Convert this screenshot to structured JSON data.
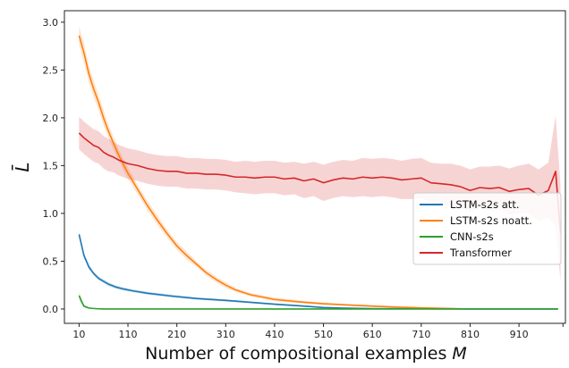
{
  "chart_data": {
    "type": "line",
    "title": "",
    "xlabel": "Number of compositional examples M",
    "xlabel_text": "Number of compositional examples ",
    "xlabel_var": "M",
    "ylabel": "L̄",
    "xlim": [
      -20,
      1005
    ],
    "ylim": [
      -0.15,
      3.12
    ],
    "xticks": [
      10,
      110,
      210,
      310,
      410,
      510,
      610,
      710,
      810,
      910
    ],
    "yticks": [
      0.0,
      0.5,
      1.0,
      1.5,
      2.0,
      2.5,
      3.0
    ],
    "ytick_labels": [
      "0.0",
      "0.5",
      "1.0",
      "1.5",
      "2.0",
      "2.5",
      "3.0"
    ],
    "grid": false,
    "legend_position": "center-right",
    "series": [
      {
        "name": "LSTM-s2s att.",
        "color": "#1f77b4",
        "points": [
          [
            10,
            0.78
          ],
          [
            20,
            0.56
          ],
          [
            30,
            0.44
          ],
          [
            40,
            0.37
          ],
          [
            50,
            0.32
          ],
          [
            60,
            0.29
          ],
          [
            70,
            0.26
          ],
          [
            85,
            0.23
          ],
          [
            100,
            0.21
          ],
          [
            120,
            0.19
          ],
          [
            150,
            0.165
          ],
          [
            200,
            0.135
          ],
          [
            250,
            0.11
          ],
          [
            310,
            0.09
          ],
          [
            360,
            0.07
          ],
          [
            410,
            0.05
          ],
          [
            470,
            0.03
          ],
          [
            510,
            0.015
          ],
          [
            560,
            0.008
          ],
          [
            610,
            0.004
          ],
          [
            710,
            0.002
          ],
          [
            810,
            0.0
          ],
          [
            990,
            0.0
          ]
        ],
        "band": [
          0.03,
          0.03,
          0.025,
          0.02,
          0.02,
          0.02,
          0.02,
          0.018,
          0.018,
          0.015,
          0.015,
          0.015,
          0.012,
          0.012,
          0.01,
          0.01,
          0.008,
          0.006,
          0.004,
          0.003,
          0.002,
          0.001,
          0.001
        ]
      },
      {
        "name": "LSTM-s2s noatt.",
        "color": "#ff7f0e",
        "points": [
          [
            10,
            2.86
          ],
          [
            20,
            2.68
          ],
          [
            30,
            2.46
          ],
          [
            40,
            2.3
          ],
          [
            50,
            2.16
          ],
          [
            60,
            2.0
          ],
          [
            70,
            1.86
          ],
          [
            80,
            1.74
          ],
          [
            90,
            1.62
          ],
          [
            100,
            1.52
          ],
          [
            110,
            1.42
          ],
          [
            130,
            1.25
          ],
          [
            150,
            1.08
          ],
          [
            170,
            0.93
          ],
          [
            190,
            0.79
          ],
          [
            210,
            0.66
          ],
          [
            230,
            0.56
          ],
          [
            250,
            0.47
          ],
          [
            270,
            0.38
          ],
          [
            290,
            0.31
          ],
          [
            310,
            0.25
          ],
          [
            330,
            0.2
          ],
          [
            360,
            0.15
          ],
          [
            410,
            0.1
          ],
          [
            460,
            0.075
          ],
          [
            510,
            0.055
          ],
          [
            560,
            0.042
          ],
          [
            610,
            0.03
          ],
          [
            660,
            0.02
          ],
          [
            710,
            0.012
          ],
          [
            760,
            0.006
          ],
          [
            790,
            0.002
          ]
        ],
        "band": [
          0.1,
          0.1,
          0.09,
          0.09,
          0.08,
          0.08,
          0.07,
          0.07,
          0.06,
          0.06,
          0.06,
          0.05,
          0.05,
          0.05,
          0.04,
          0.04,
          0.04,
          0.03,
          0.03,
          0.03,
          0.03,
          0.02,
          0.02,
          0.02,
          0.015,
          0.012,
          0.01,
          0.01,
          0.008,
          0.006,
          0.004,
          0.002
        ]
      },
      {
        "name": "CNN-s2s",
        "color": "#2ca02c",
        "points": [
          [
            10,
            0.14
          ],
          [
            15,
            0.08
          ],
          [
            20,
            0.03
          ],
          [
            30,
            0.01
          ],
          [
            45,
            0.003
          ],
          [
            60,
            0.0
          ],
          [
            990,
            0.0
          ]
        ],
        "band": [
          0.04,
          0.03,
          0.015,
          0.008,
          0.003,
          0.0,
          0.0
        ]
      },
      {
        "name": "Transformer",
        "color": "#d62728",
        "points": [
          [
            10,
            1.84
          ],
          [
            20,
            1.79
          ],
          [
            30,
            1.75
          ],
          [
            40,
            1.71
          ],
          [
            50,
            1.69
          ],
          [
            60,
            1.64
          ],
          [
            70,
            1.61
          ],
          [
            80,
            1.59
          ],
          [
            90,
            1.56
          ],
          [
            100,
            1.54
          ],
          [
            110,
            1.52
          ],
          [
            130,
            1.5
          ],
          [
            150,
            1.47
          ],
          [
            170,
            1.45
          ],
          [
            190,
            1.44
          ],
          [
            210,
            1.44
          ],
          [
            230,
            1.42
          ],
          [
            250,
            1.42
          ],
          [
            270,
            1.41
          ],
          [
            290,
            1.41
          ],
          [
            310,
            1.4
          ],
          [
            330,
            1.38
          ],
          [
            350,
            1.38
          ],
          [
            370,
            1.37
          ],
          [
            390,
            1.38
          ],
          [
            410,
            1.38
          ],
          [
            430,
            1.36
          ],
          [
            450,
            1.37
          ],
          [
            470,
            1.34
          ],
          [
            490,
            1.36
          ],
          [
            510,
            1.32
          ],
          [
            530,
            1.35
          ],
          [
            550,
            1.37
          ],
          [
            570,
            1.36
          ],
          [
            590,
            1.38
          ],
          [
            610,
            1.37
          ],
          [
            630,
            1.38
          ],
          [
            650,
            1.37
          ],
          [
            670,
            1.35
          ],
          [
            690,
            1.36
          ],
          [
            710,
            1.37
          ],
          [
            730,
            1.32
          ],
          [
            750,
            1.31
          ],
          [
            770,
            1.3
          ],
          [
            790,
            1.28
          ],
          [
            810,
            1.24
          ],
          [
            830,
            1.27
          ],
          [
            850,
            1.26
          ],
          [
            870,
            1.27
          ],
          [
            890,
            1.23
          ],
          [
            910,
            1.25
          ],
          [
            930,
            1.26
          ],
          [
            950,
            1.19
          ],
          [
            970,
            1.24
          ],
          [
            985,
            1.44
          ],
          [
            995,
            0.79
          ]
        ],
        "band": [
          0.17,
          0.17,
          0.17,
          0.17,
          0.17,
          0.17,
          0.17,
          0.16,
          0.16,
          0.16,
          0.16,
          0.16,
          0.16,
          0.16,
          0.16,
          0.16,
          0.16,
          0.16,
          0.16,
          0.16,
          0.16,
          0.16,
          0.17,
          0.17,
          0.17,
          0.17,
          0.17,
          0.17,
          0.18,
          0.18,
          0.19,
          0.19,
          0.19,
          0.19,
          0.2,
          0.2,
          0.2,
          0.2,
          0.2,
          0.21,
          0.21,
          0.21,
          0.21,
          0.22,
          0.22,
          0.22,
          0.22,
          0.23,
          0.23,
          0.24,
          0.25,
          0.26,
          0.27,
          0.29,
          0.58,
          0.5
        ]
      }
    ]
  }
}
